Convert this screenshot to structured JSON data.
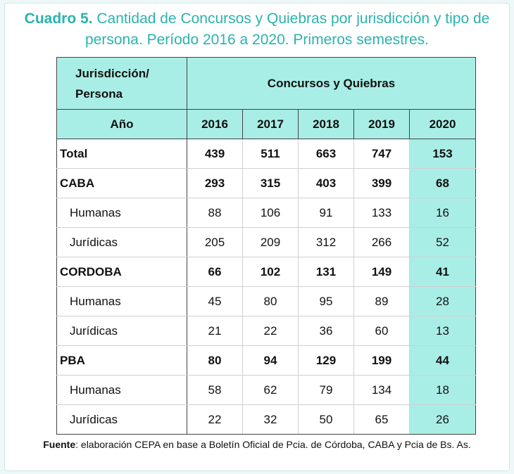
{
  "title": {
    "label": "Cuadro 5.",
    "text": "Cantidad de Concursos y Quiebras por jurisdicción y tipo de persona. Período 2016 a 2020. Primeros semestres."
  },
  "table": {
    "corner_line1": "Jurisdicción/",
    "corner_line2": "Persona",
    "group_header": "Concursos y Quiebras",
    "year_label": "Año",
    "years": [
      "2016",
      "2017",
      "2018",
      "2019",
      "2020"
    ],
    "rows": [
      {
        "name": "Total",
        "bold": true,
        "sub": false,
        "values": [
          "439",
          "511",
          "663",
          "747",
          "153"
        ]
      },
      {
        "name": "CABA",
        "bold": true,
        "sub": false,
        "values": [
          "293",
          "315",
          "403",
          "399",
          "68"
        ]
      },
      {
        "name": "Humanas",
        "bold": false,
        "sub": true,
        "values": [
          "88",
          "106",
          "91",
          "133",
          "16"
        ]
      },
      {
        "name": "Jurídicas",
        "bold": false,
        "sub": true,
        "values": [
          "205",
          "209",
          "312",
          "266",
          "52"
        ]
      },
      {
        "name": "CORDOBA",
        "bold": true,
        "sub": false,
        "values": [
          "66",
          "102",
          "131",
          "149",
          "41"
        ]
      },
      {
        "name": "Humanas",
        "bold": false,
        "sub": true,
        "values": [
          "45",
          "80",
          "95",
          "89",
          "28"
        ]
      },
      {
        "name": "Jurídicas",
        "bold": false,
        "sub": true,
        "values": [
          "21",
          "22",
          "36",
          "60",
          "13"
        ]
      },
      {
        "name": "PBA",
        "bold": true,
        "sub": false,
        "values": [
          "80",
          "94",
          "129",
          "199",
          "44"
        ]
      },
      {
        "name": "Humanas",
        "bold": false,
        "sub": true,
        "values": [
          "58",
          "62",
          "79",
          "134",
          "18"
        ]
      },
      {
        "name": "Jurídicas",
        "bold": false,
        "sub": true,
        "values": [
          "22",
          "32",
          "50",
          "65",
          "26"
        ]
      }
    ]
  },
  "source": {
    "label": "Fuente",
    "text": ": elaboración CEPA en base a Boletín Oficial de Pcia. de Córdoba, CABA y Pcia de Bs. As."
  },
  "colors": {
    "accent": "#2bb3ad",
    "header_fill": "#a9eee6"
  }
}
